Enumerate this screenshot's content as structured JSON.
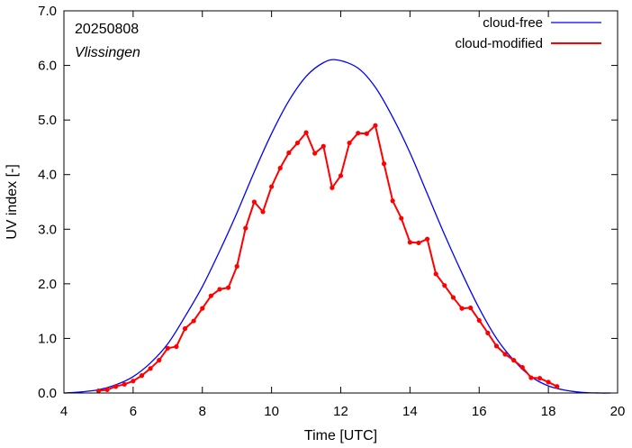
{
  "chart_data": {
    "type": "line",
    "xlabel": "Time  [UTC]",
    "ylabel": "UV index  [-]",
    "xlim": [
      4,
      20
    ],
    "ylim": [
      0,
      7
    ],
    "x_ticks": [
      4,
      6,
      8,
      10,
      12,
      14,
      16,
      18,
      20
    ],
    "x_tick_labels": [
      "4",
      "6",
      "8",
      "10",
      "12",
      "14",
      "16",
      "18",
      "20"
    ],
    "y_ticks": [
      0,
      1,
      2,
      3,
      4,
      5,
      6,
      7
    ],
    "y_tick_labels": [
      "0.0",
      "1.0",
      "2.0",
      "3.0",
      "4.0",
      "5.0",
      "6.0",
      "7.0"
    ],
    "grid": false,
    "legend_position": "top-right",
    "annotations": {
      "date": "20250808",
      "location": "Vlissingen"
    },
    "series": [
      {
        "name": "cloud-free",
        "color": "#0000ff",
        "markers": false,
        "x": [
          4.0,
          4.5,
          5.0,
          5.5,
          6.0,
          6.5,
          7.0,
          7.5,
          8.0,
          8.5,
          9.0,
          9.5,
          10.0,
          10.5,
          11.0,
          11.5,
          11.9,
          12.5,
          13.0,
          13.5,
          14.0,
          14.5,
          15.0,
          15.5,
          16.0,
          16.5,
          17.0,
          17.5,
          18.0,
          18.5,
          19.0,
          19.5,
          19.8
        ],
        "y": [
          0.0,
          0.02,
          0.06,
          0.15,
          0.3,
          0.55,
          0.9,
          1.4,
          1.95,
          2.6,
          3.3,
          4.05,
          4.75,
          5.35,
          5.8,
          6.05,
          6.1,
          5.95,
          5.6,
          5.05,
          4.4,
          3.65,
          2.9,
          2.2,
          1.55,
          1.0,
          0.6,
          0.3,
          0.13,
          0.05,
          0.01,
          0.0,
          0.0
        ]
      },
      {
        "name": "cloud-modified",
        "color": "#ff0000",
        "markers": true,
        "x": [
          5.0,
          5.25,
          5.5,
          5.75,
          6.0,
          6.25,
          6.5,
          6.75,
          7.0,
          7.25,
          7.5,
          7.75,
          8.0,
          8.25,
          8.5,
          8.75,
          9.0,
          9.25,
          9.5,
          9.75,
          10.0,
          10.25,
          10.5,
          10.75,
          11.0,
          11.25,
          11.5,
          11.75,
          12.0,
          12.25,
          12.5,
          12.75,
          13.0,
          13.25,
          13.5,
          13.75,
          14.0,
          14.25,
          14.5,
          14.75,
          15.0,
          15.25,
          15.5,
          15.75,
          16.0,
          16.25,
          16.5,
          16.75,
          17.0,
          17.25,
          17.5,
          17.75,
          18.0,
          18.25
        ],
        "y": [
          0.04,
          0.06,
          0.12,
          0.16,
          0.22,
          0.32,
          0.45,
          0.6,
          0.82,
          0.85,
          1.18,
          1.32,
          1.55,
          1.78,
          1.9,
          1.93,
          2.32,
          3.02,
          3.5,
          3.32,
          3.78,
          4.12,
          4.4,
          4.58,
          4.77,
          4.39,
          4.52,
          3.76,
          3.98,
          4.58,
          4.76,
          4.75,
          4.9,
          4.2,
          3.52,
          3.2,
          2.76,
          2.75,
          2.82,
          2.18,
          1.97,
          1.75,
          1.55,
          1.56,
          1.33,
          1.1,
          0.86,
          0.71,
          0.6,
          0.47,
          0.28,
          0.27,
          0.2,
          0.12
        ]
      }
    ]
  }
}
